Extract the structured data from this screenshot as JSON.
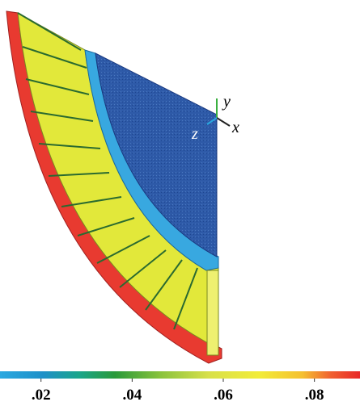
{
  "triad": {
    "x": "x",
    "y": "y",
    "z": "z"
  },
  "colorbar": {
    "range": [
      0.011,
      0.09
    ],
    "ticks": [
      {
        "value": 0.02,
        "label": ".02"
      },
      {
        "value": 0.04,
        "label": ".04"
      },
      {
        "value": 0.06,
        "label": ".06"
      },
      {
        "value": 0.08,
        "label": ".08"
      }
    ]
  }
}
